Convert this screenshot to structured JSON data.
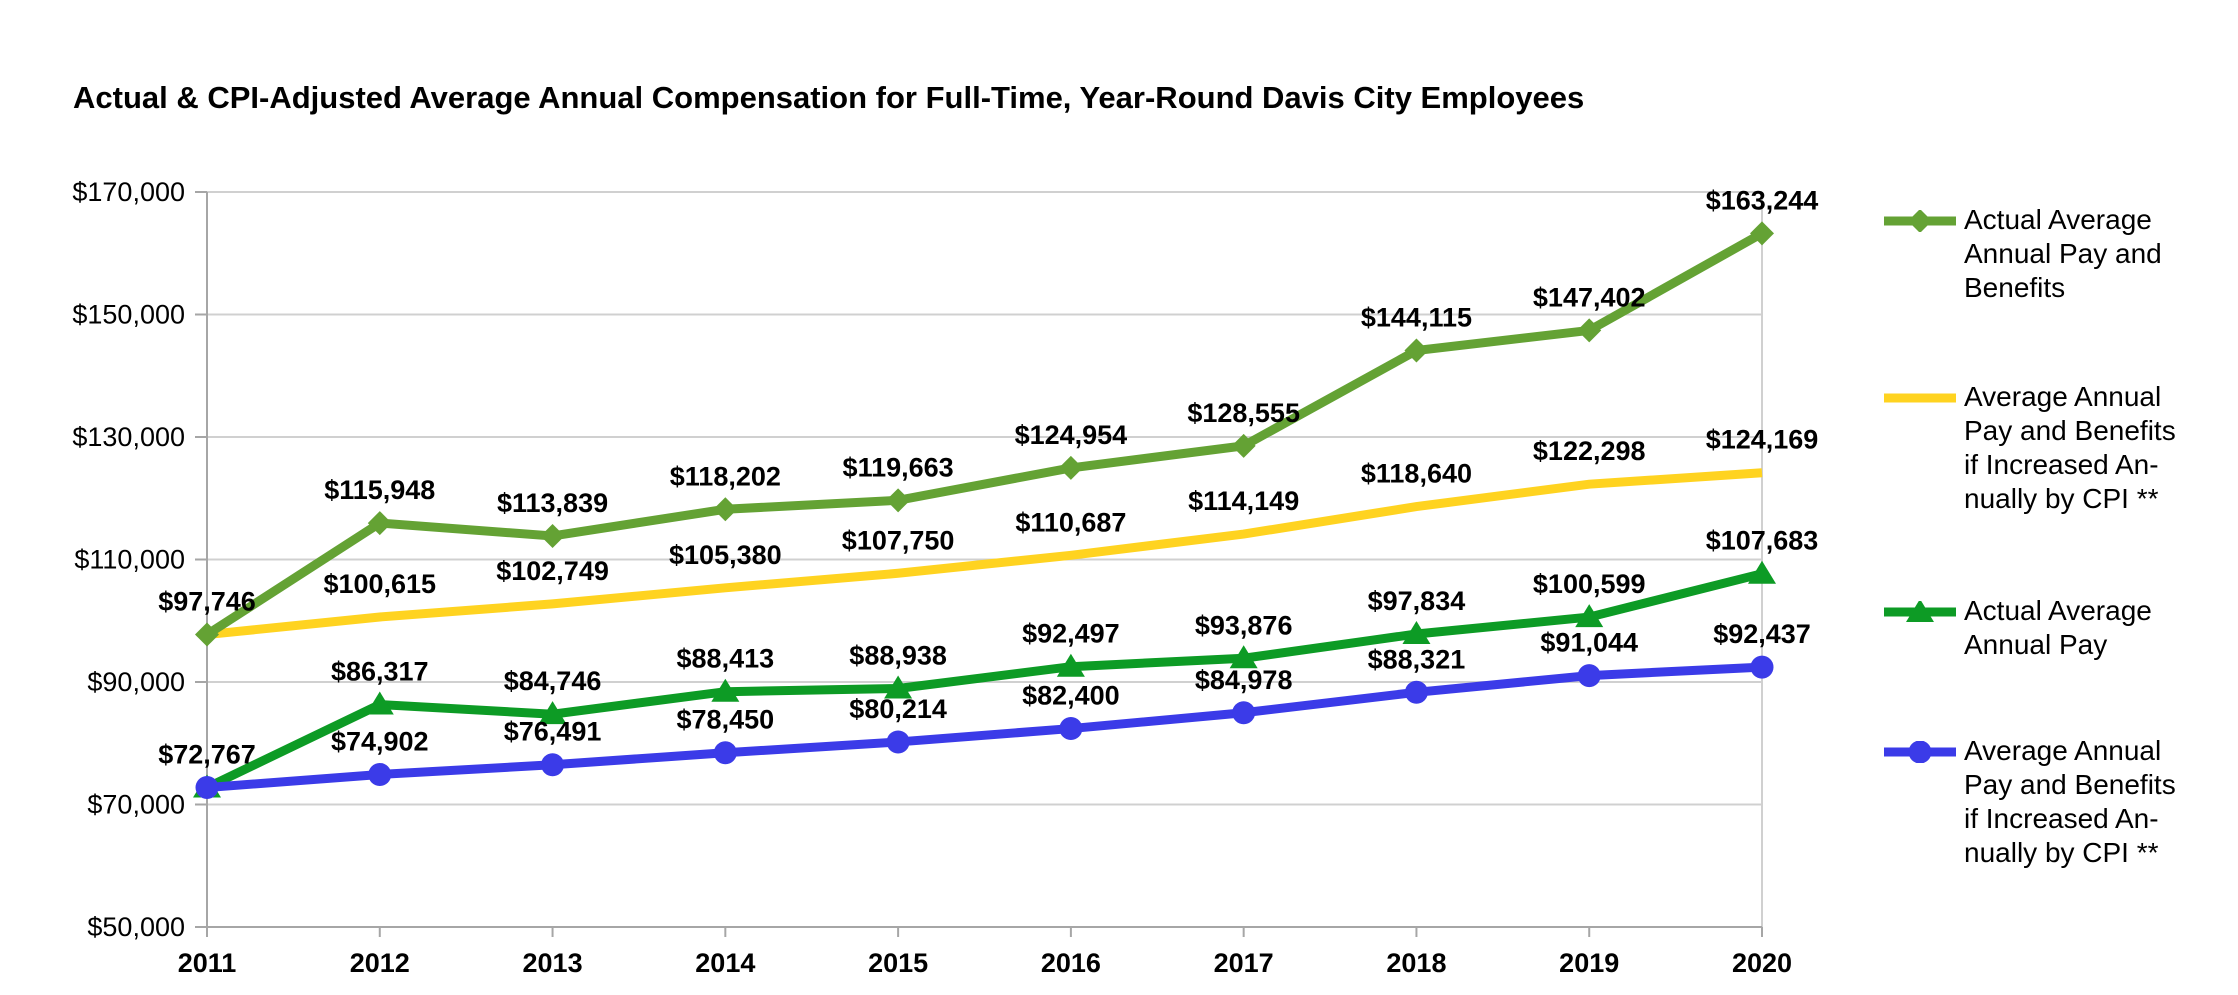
{
  "title": "Actual & CPI-Adjusted Average Annual Compensation for Full-Time, Year-Round Davis City Employees",
  "chart_data": {
    "type": "line",
    "title": "Actual & CPI-Adjusted Average Annual Compensation for Full-Time, Year-Round Davis City Employees",
    "categories": [
      "2011",
      "2012",
      "2013",
      "2014",
      "2015",
      "2016",
      "2017",
      "2018",
      "2019",
      "2020"
    ],
    "xlabel": "",
    "ylabel": "",
    "ylim": [
      50000,
      170000
    ],
    "ytick_step": 20000,
    "ytick_labels": [
      "$50,000",
      "$70,000",
      "$90,000",
      "$110,000",
      "$130,000",
      "$150,000",
      "$170,000"
    ],
    "grid": "horizontal",
    "legend_position": "right",
    "axis_color": "#a6a6a6",
    "gridline_color": "#d0d0d0",
    "series": [
      {
        "name": "Actual Average Annual Pay and Benefits",
        "legend_label": "Actual Average\nAnnual Pay and\nBenefits",
        "color": "#64A234",
        "marker": "diamond",
        "values": [
          97746,
          115948,
          113839,
          118202,
          119663,
          124954,
          128555,
          144115,
          147402,
          163244
        ],
        "labels": [
          "$97,746",
          "$115,948",
          "$113,839",
          "$118,202",
          "$119,663",
          "$124,954",
          "$128,555",
          "$144,115",
          "$147,402",
          "$163,244"
        ]
      },
      {
        "name": "Average Annual Pay and Benefits if Increased Annually by CPI **",
        "legend_label": "Average Annual\nPay and Benefits\nif Increased An-\nnually by CPI **",
        "color": "#FFD320",
        "marker": "none",
        "values": [
          97746,
          100615,
          102749,
          105380,
          107750,
          110687,
          114149,
          118640,
          122298,
          124169
        ],
        "labels": [
          null,
          "$100,615",
          "$102,749",
          "$105,380",
          "$107,750",
          "$110,687",
          "$114,149",
          "$118,640",
          "$122,298",
          "$124,169"
        ]
      },
      {
        "name": "Actual Average Annual Pay",
        "legend_label": "Actual Average\nAnnual Pay",
        "color": "#0D9B25",
        "marker": "triangle",
        "values": [
          72767,
          86317,
          84746,
          88413,
          88938,
          92497,
          93876,
          97834,
          100599,
          107683
        ],
        "labels": [
          null,
          "$86,317",
          "$84,746",
          "$88,413",
          "$88,938",
          "$92,497",
          "$93,876",
          "$97,834",
          "$100,599",
          "$107,683"
        ]
      },
      {
        "name": "Average Annual Pay and Benefits if Increased Annually by CPI **",
        "legend_label": "Average Annual\nPay and Benefits\nif Increased An-\nnually by CPI **",
        "color": "#3B3BE8",
        "marker": "circle",
        "values": [
          72767,
          74902,
          76491,
          78450,
          80214,
          82400,
          84978,
          88321,
          91044,
          92437
        ],
        "labels": [
          "$72,767",
          "$74,902",
          "$76,491",
          "$78,450",
          "$80,214",
          "$82,400",
          "$84,978",
          "$88,321",
          "$91,044",
          "$92,437"
        ]
      }
    ]
  }
}
